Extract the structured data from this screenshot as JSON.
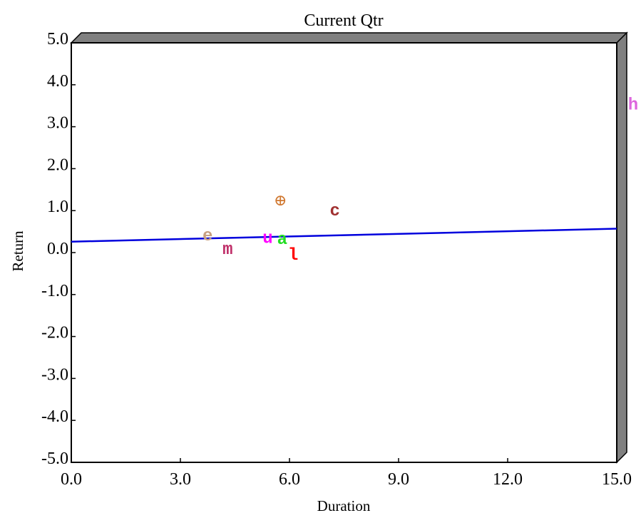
{
  "chart_data": {
    "type": "scatter",
    "title": "Current Qtr",
    "xlabel": "Duration",
    "ylabel": "Return",
    "xlim": [
      0,
      15
    ],
    "ylim": [
      -5,
      5
    ],
    "x_ticks": [
      {
        "value": 0,
        "label": "0.0"
      },
      {
        "value": 3,
        "label": "3.0"
      },
      {
        "value": 6,
        "label": "6.0"
      },
      {
        "value": 9,
        "label": "9.0"
      },
      {
        "value": 12,
        "label": "12.0"
      },
      {
        "value": 15,
        "label": "15.0"
      }
    ],
    "y_ticks": [
      {
        "value": 5,
        "label": "5.0"
      },
      {
        "value": 4,
        "label": "4.0"
      },
      {
        "value": 3,
        "label": "3.0"
      },
      {
        "value": 2,
        "label": "2.0"
      },
      {
        "value": 1,
        "label": "1.0"
      },
      {
        "value": 0,
        "label": "0.0"
      },
      {
        "value": -1,
        "label": "-1.0"
      },
      {
        "value": -2,
        "label": "-2.0"
      },
      {
        "value": -3,
        "label": "-3.0"
      },
      {
        "value": -4,
        "label": "-4.0"
      },
      {
        "value": -5,
        "label": "-5.0"
      }
    ],
    "points": [
      {
        "label": "e",
        "x": 3.75,
        "y": 0.38,
        "color": "#c8a080"
      },
      {
        "label": "m",
        "x": 4.3,
        "y": 0.06,
        "color": "#c0306a"
      },
      {
        "label": "u",
        "x": 5.4,
        "y": 0.32,
        "color": "#ff00ff"
      },
      {
        "label": "⊕",
        "x": 5.75,
        "y": 1.25,
        "color": "#d07830"
      },
      {
        "label": "a",
        "x": 5.8,
        "y": 0.3,
        "color": "#22dd22"
      },
      {
        "label": "l",
        "x": 6.1,
        "y": -0.08,
        "color": "#ff0000"
      },
      {
        "label": "c",
        "x": 7.25,
        "y": 0.98,
        "color": "#a03030"
      },
      {
        "label": "h",
        "x": 15.45,
        "y": 3.5,
        "color": "#dd66dd"
      }
    ],
    "trend_line": {
      "x": [
        0,
        15
      ],
      "y": [
        0.26,
        0.57
      ],
      "color": "#0000dd"
    },
    "grid": false,
    "frame_color": "#808080",
    "plot_background": "#ffffff"
  }
}
